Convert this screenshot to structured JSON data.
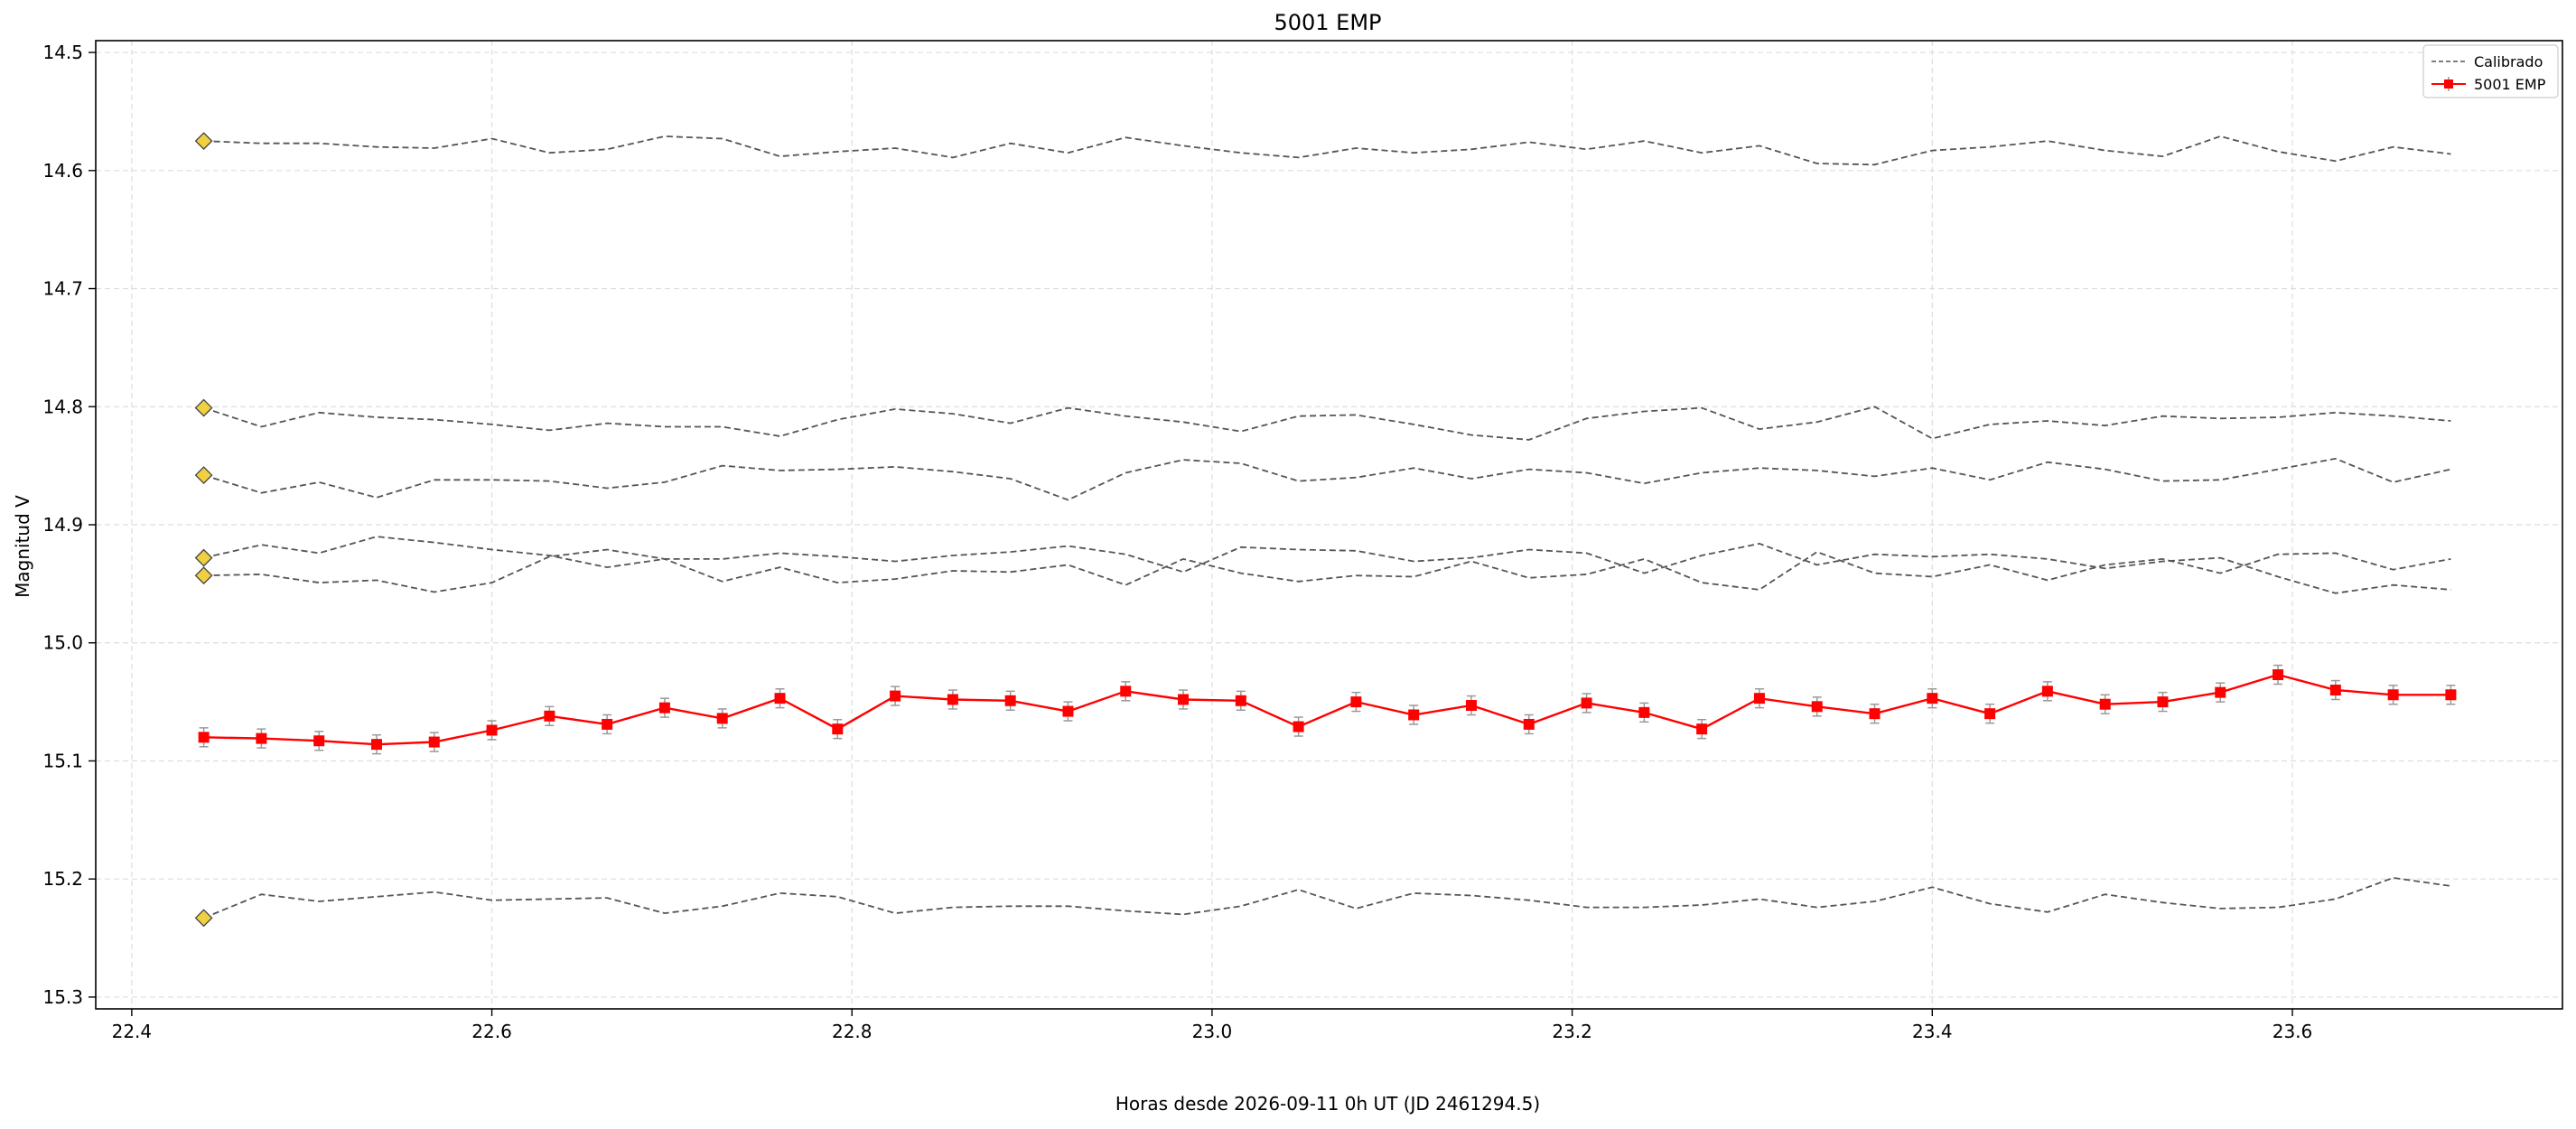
{
  "chart_data": {
    "type": "line",
    "title": "5001 EMP",
    "xlabel": "Horas desde 2026-09-11 0h UT (JD 2461294.5)",
    "ylabel": "Magnitud V",
    "xlim": [
      22.38,
      23.75
    ],
    "ylim": [
      15.31,
      14.49
    ],
    "y_inverted": true,
    "grid": true,
    "legend_position": "top-right",
    "x_ticks": [
      22.4,
      22.6,
      22.8,
      23.0,
      23.2,
      23.4,
      23.6
    ],
    "x_tick_labels": [
      "22.4",
      "22.6",
      "22.8",
      "23.0",
      "23.2",
      "23.4",
      "23.6"
    ],
    "y_ticks": [
      14.5,
      14.6,
      14.7,
      14.8,
      14.9,
      15.0,
      15.1,
      15.2,
      15.3
    ],
    "y_tick_labels": [
      "14.5",
      "14.6",
      "14.7",
      "14.8",
      "14.9",
      "15.0",
      "15.1",
      "15.2",
      "15.3"
    ],
    "x": [
      22.44,
      22.472,
      22.504,
      22.536,
      22.568,
      22.6,
      22.632,
      22.664,
      22.696,
      22.728,
      22.76,
      22.792,
      22.824,
      22.856,
      22.888,
      22.92,
      22.952,
      22.984,
      23.016,
      23.048,
      23.08,
      23.112,
      23.144,
      23.176,
      23.208,
      23.24,
      23.272,
      23.304,
      23.336,
      23.368,
      23.4,
      23.432,
      23.464,
      23.496,
      23.528,
      23.56,
      23.592,
      23.624,
      23.656,
      23.688
    ],
    "legend": [
      {
        "label": "Calibrado",
        "style": "dashed-gray"
      },
      {
        "label": "5001 EMP",
        "style": "red-square-errorbar"
      }
    ],
    "comparison_series": [
      {
        "values": [
          14.575,
          14.577,
          14.577,
          14.58,
          14.581,
          14.573,
          14.585,
          14.582,
          14.571,
          14.573,
          14.588,
          14.584,
          14.581,
          14.589,
          14.577,
          14.585,
          14.572,
          14.579,
          14.585,
          14.589,
          14.581,
          14.585,
          14.582,
          14.576,
          14.582,
          14.575,
          14.585,
          14.579,
          14.594,
          14.595,
          14.583,
          14.58,
          14.575,
          14.583,
          14.588,
          14.571,
          14.584,
          14.592,
          14.58,
          14.586
        ]
      },
      {
        "values": [
          14.801,
          14.817,
          14.805,
          14.809,
          14.811,
          14.815,
          14.82,
          14.814,
          14.817,
          14.817,
          14.825,
          14.811,
          14.802,
          14.806,
          14.814,
          14.801,
          14.808,
          14.813,
          14.821,
          14.808,
          14.807,
          14.815,
          14.824,
          14.828,
          14.81,
          14.804,
          14.801,
          14.819,
          14.813,
          14.8,
          14.827,
          14.815,
          14.812,
          14.816,
          14.808,
          14.81,
          14.809,
          14.805,
          14.808,
          14.812
        ]
      },
      {
        "values": [
          14.858,
          14.873,
          14.864,
          14.877,
          14.862,
          14.862,
          14.863,
          14.869,
          14.864,
          14.85,
          14.854,
          14.853,
          14.851,
          14.855,
          14.861,
          14.879,
          14.856,
          14.845,
          14.848,
          14.863,
          14.86,
          14.852,
          14.861,
          14.853,
          14.856,
          14.865,
          14.856,
          14.852,
          14.854,
          14.859,
          14.852,
          14.862,
          14.847,
          14.853,
          14.863,
          14.862,
          14.853,
          14.844,
          14.864,
          14.853
        ]
      },
      {
        "values": [
          14.928,
          14.917,
          14.924,
          14.91,
          14.915,
          14.921,
          14.926,
          14.936,
          14.929,
          14.929,
          14.924,
          14.927,
          14.931,
          14.926,
          14.923,
          14.918,
          14.925,
          14.94,
          14.919,
          14.921,
          14.922,
          14.931,
          14.928,
          14.921,
          14.924,
          14.941,
          14.926,
          14.916,
          14.934,
          14.925,
          14.927,
          14.925,
          14.929,
          14.937,
          14.931,
          14.928,
          14.944,
          14.958,
          14.951,
          14.955
        ]
      },
      {
        "values": [
          14.943,
          14.942,
          14.949,
          14.947,
          14.957,
          14.949,
          14.927,
          14.921,
          14.929,
          14.948,
          14.936,
          14.949,
          14.946,
          14.939,
          14.94,
          14.934,
          14.951,
          14.929,
          14.941,
          14.948,
          14.943,
          14.944,
          14.931,
          14.945,
          14.942,
          14.929,
          14.949,
          14.955,
          14.923,
          14.941,
          14.944,
          14.934,
          14.947,
          14.934,
          14.929,
          14.941,
          14.925,
          14.924,
          14.938,
          14.929
        ]
      },
      {
        "values": [
          15.233,
          15.213,
          15.219,
          15.215,
          15.211,
          15.218,
          15.217,
          15.216,
          15.229,
          15.223,
          15.212,
          15.215,
          15.229,
          15.224,
          15.223,
          15.223,
          15.227,
          15.23,
          15.223,
          15.209,
          15.225,
          15.212,
          15.214,
          15.218,
          15.224,
          15.224,
          15.222,
          15.217,
          15.224,
          15.219,
          15.207,
          15.221,
          15.228,
          15.213,
          15.22,
          15.225,
          15.224,
          15.217,
          15.199,
          15.206
        ]
      }
    ],
    "reference_markers": [
      14.575,
      14.801,
      14.858,
      14.928,
      14.943,
      15.233
    ],
    "target_series": {
      "name": "5001 EMP",
      "values": [
        15.08,
        15.081,
        15.083,
        15.086,
        15.084,
        15.074,
        15.062,
        15.069,
        15.055,
        15.064,
        15.047,
        15.073,
        15.045,
        15.048,
        15.049,
        15.058,
        15.041,
        15.048,
        15.049,
        15.071,
        15.05,
        15.061,
        15.053,
        15.069,
        15.051,
        15.059,
        15.073,
        15.047,
        15.054,
        15.06,
        15.047,
        15.06,
        15.041,
        15.052,
        15.05,
        15.042,
        15.027,
        15.04,
        15.044,
        15.044
      ],
      "error": 0.008
    }
  },
  "colors": {
    "target": "#ff0000",
    "comparison": "#555555",
    "marker_fill": "#f0d040",
    "marker_edge": "#444444",
    "grid": "#dddddd",
    "errorbar": "#999999"
  }
}
